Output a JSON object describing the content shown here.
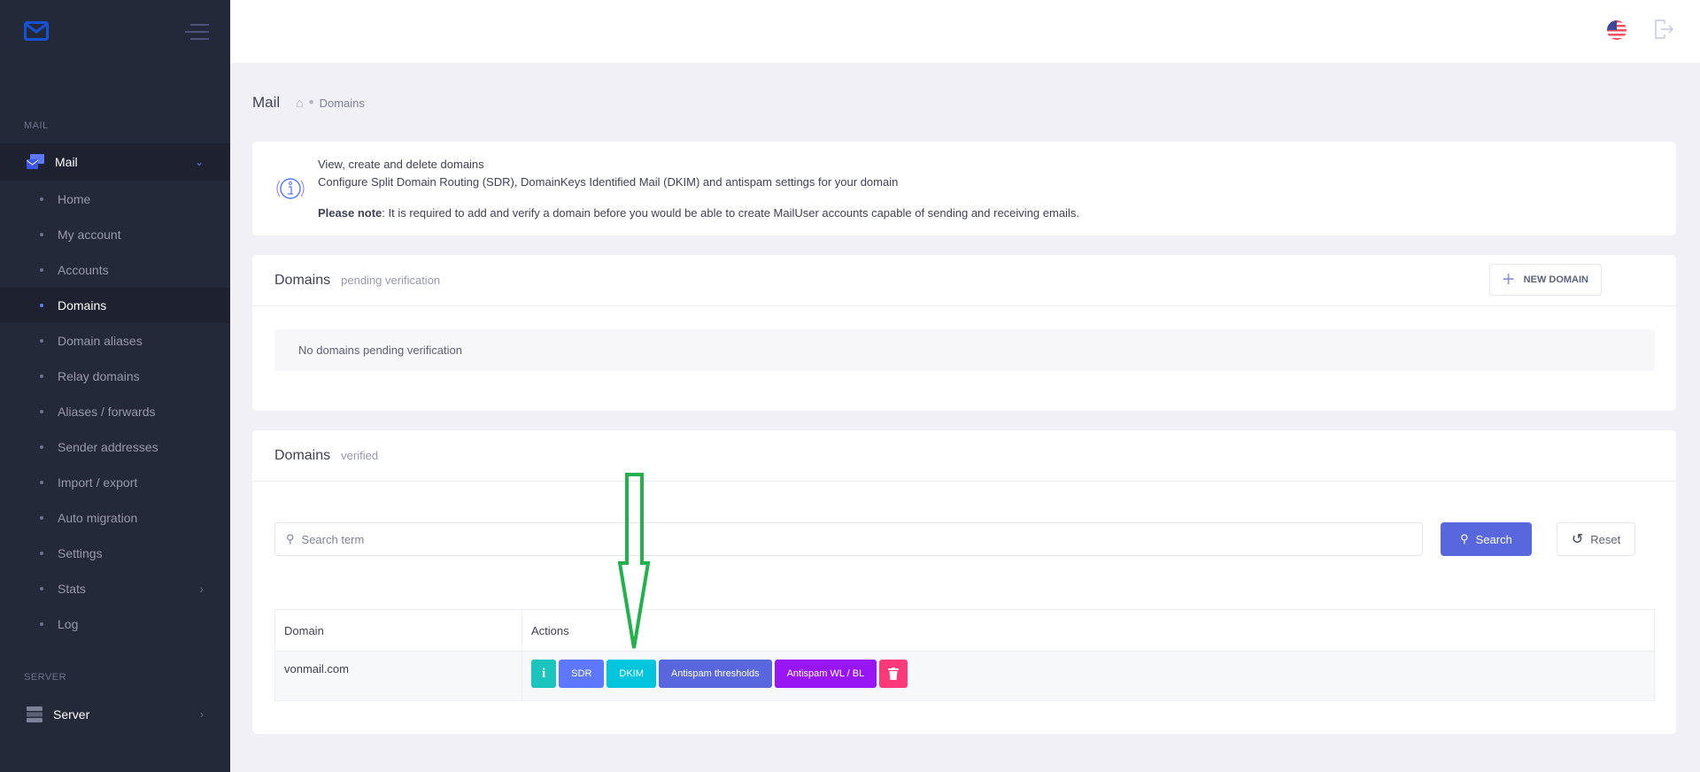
{
  "sidebar": {
    "section_mail": "MAIL",
    "mail": "Mail",
    "items": [
      {
        "label": "Home"
      },
      {
        "label": "My account"
      },
      {
        "label": "Accounts"
      },
      {
        "label": "Domains",
        "active": true
      },
      {
        "label": "Domain aliases"
      },
      {
        "label": "Relay domains"
      },
      {
        "label": "Aliases / forwards"
      },
      {
        "label": "Sender addresses"
      },
      {
        "label": "Import / export"
      },
      {
        "label": "Auto migration"
      },
      {
        "label": "Settings"
      },
      {
        "label": "Stats"
      },
      {
        "label": "Log"
      }
    ],
    "section_server": "SERVER",
    "server": "Server"
  },
  "breadcrumb": {
    "title": "Mail",
    "current": "Domains"
  },
  "info": {
    "line1": "View, create and delete domains",
    "line2": "Configure Split Domain Routing (SDR), DomainKeys Identified Mail (DKIM) and antispam settings for your domain",
    "note_label": "Please note",
    "note_text": ": It is required to add and verify a domain before you would be able to create MailUser accounts capable of sending and receiving emails."
  },
  "pending": {
    "title": "Domains",
    "subtitle": "pending verification",
    "new_button": "NEW DOMAIN",
    "empty": "No domains pending verification"
  },
  "verified": {
    "title": "Domains",
    "subtitle": "verified",
    "search_placeholder": "Search term",
    "search_button": "Search",
    "reset_button": "Reset",
    "columns": [
      "Domain",
      "Actions"
    ],
    "rows": [
      {
        "domain": "vonmail.com"
      }
    ],
    "actions": [
      {
        "label": "",
        "icon": "info-icon",
        "color": "#1bc5bd"
      },
      {
        "label": "SDR",
        "color": "#5d78ff"
      },
      {
        "label": "DKIM",
        "color": "#00c5dc"
      },
      {
        "label": "Antispam thresholds",
        "color": "#5867dd"
      },
      {
        "label": "Antispam WL / BL",
        "color": "#9816f4"
      },
      {
        "label": "",
        "icon": "trash-icon",
        "color": "#fd397a"
      }
    ]
  },
  "annotation": {
    "arrow_color": "#22b14c"
  }
}
